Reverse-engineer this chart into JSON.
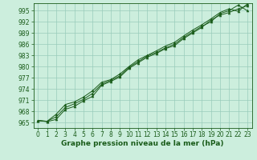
{
  "xlabel": "Graphe pression niveau de la mer (hPa)",
  "bg_color": "#cceedd",
  "grid_color": "#99ccbb",
  "line_color": "#1a5c1a",
  "marker_color": "#1a5c1a",
  "xlim_min": -0.5,
  "xlim_max": 23.5,
  "ylim_min": 963.5,
  "ylim_max": 997.0,
  "yticks": [
    965,
    968,
    971,
    974,
    977,
    980,
    983,
    986,
    989,
    992,
    995
  ],
  "xticks": [
    0,
    1,
    2,
    3,
    4,
    5,
    6,
    7,
    8,
    9,
    10,
    11,
    12,
    13,
    14,
    15,
    16,
    17,
    18,
    19,
    20,
    21,
    22,
    23
  ],
  "hours": [
    0,
    1,
    2,
    3,
    4,
    5,
    6,
    7,
    8,
    9,
    10,
    11,
    12,
    13,
    14,
    15,
    16,
    17,
    18,
    19,
    20,
    21,
    22,
    23
  ],
  "pressure_line1": [
    965.5,
    965.2,
    965.8,
    968.5,
    969.3,
    970.8,
    972.0,
    975.0,
    976.0,
    977.2,
    979.5,
    981.0,
    982.5,
    983.5,
    984.8,
    985.6,
    987.5,
    989.0,
    990.5,
    992.5,
    993.8,
    994.5,
    995.5,
    996.3
  ],
  "pressure_line2": [
    965.5,
    965.3,
    967.2,
    969.8,
    970.5,
    971.8,
    973.5,
    975.8,
    976.5,
    978.0,
    980.0,
    981.8,
    983.0,
    984.2,
    985.5,
    986.5,
    988.2,
    989.8,
    991.2,
    992.8,
    994.5,
    995.5,
    994.8,
    996.8
  ],
  "pressure_line3": [
    965.5,
    965.3,
    966.5,
    969.0,
    970.0,
    971.2,
    972.8,
    975.3,
    976.3,
    977.5,
    979.8,
    981.3,
    982.8,
    983.8,
    985.0,
    986.0,
    987.8,
    989.3,
    990.8,
    992.0,
    994.2,
    995.0,
    996.5,
    995.0
  ],
  "tick_fontsize": 5.5,
  "xlabel_fontsize": 6.5,
  "linewidth": 0.7,
  "markersize": 2.2
}
